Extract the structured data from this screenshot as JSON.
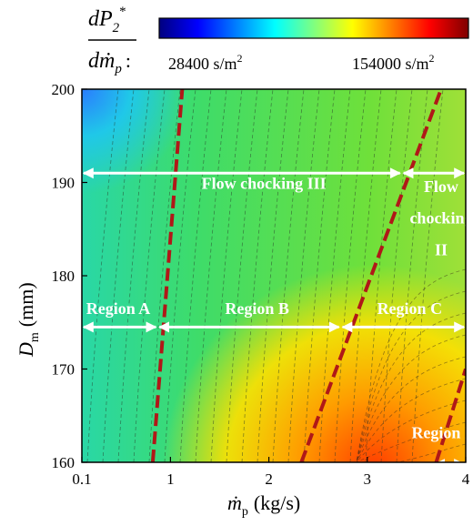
{
  "chart_data": {
    "type": "heatmap",
    "colorbar": {
      "label_numerator_base": "dP",
      "label_numerator_sub": "2",
      "label_numerator_sup": "*",
      "label_denominator_base": "dṁ",
      "label_denominator_sub": "p",
      "label_colon": ":",
      "min_label": "28400 s/m",
      "min_label_sup": "2",
      "max_label": "154000 s/m",
      "max_label_sup": "2",
      "min": 28400,
      "max": 154000,
      "colormap": "jet"
    },
    "xlabel_base": "ṁ",
    "xlabel_sub": "p",
    "xlabel_unit": "(kg/s)",
    "ylabel_base": "D",
    "ylabel_sub": "m",
    "ylabel_unit": "(mm)",
    "xlim": [
      0.1,
      4
    ],
    "ylim": [
      160,
      200
    ],
    "x_ticks": [
      {
        "value": 0.1,
        "label": "0.1"
      },
      {
        "value": 1,
        "label": "1"
      },
      {
        "value": 2,
        "label": "2"
      },
      {
        "value": 3,
        "label": "3"
      },
      {
        "value": 4,
        "label": "4"
      }
    ],
    "y_ticks": [
      {
        "value": 160,
        "label": "160"
      },
      {
        "value": 170,
        "label": "170"
      },
      {
        "value": 180,
        "label": "180"
      },
      {
        "value": 190,
        "label": "190"
      },
      {
        "value": 200,
        "label": "200"
      }
    ],
    "boundary_lines": [
      {
        "color": "#b01818",
        "style": "dashed",
        "points": [
          [
            0.82,
            160
          ],
          [
            1.12,
            200
          ]
        ]
      },
      {
        "color": "#b01818",
        "style": "dashed",
        "points": [
          [
            2.33,
            160
          ],
          [
            3.75,
            200
          ]
        ]
      },
      {
        "color": "#b01818",
        "style": "dashed",
        "points": [
          [
            3.7,
            160
          ],
          [
            4.0,
            170
          ]
        ]
      }
    ],
    "annotations": [
      {
        "text": "Flow chocking III",
        "x": 1.95,
        "y": 189.3
      },
      {
        "text": "Flow",
        "x": 3.75,
        "y": 189.0
      },
      {
        "text": "chocking",
        "x": 3.75,
        "y": 185.6
      },
      {
        "text": "II",
        "x": 3.75,
        "y": 182.2
      },
      {
        "text": "Region A",
        "x": 0.47,
        "y": 175.9
      },
      {
        "text": "Region B",
        "x": 1.88,
        "y": 175.9
      },
      {
        "text": "Region C",
        "x": 3.43,
        "y": 175.9
      },
      {
        "text": "Region D",
        "x": 3.78,
        "y": 162.6
      }
    ],
    "arrows": [
      {
        "from": [
          0.1,
          191
        ],
        "to": [
          3.35,
          191
        ]
      },
      {
        "from": [
          3.35,
          191
        ],
        "to": [
          4.0,
          191
        ]
      },
      {
        "from": [
          0.1,
          174.5
        ],
        "to": [
          0.87,
          174.5
        ]
      },
      {
        "from": [
          0.87,
          174.5
        ],
        "to": [
          2.73,
          174.5
        ]
      },
      {
        "from": [
          2.73,
          174.5
        ],
        "to": [
          4.0,
          174.5
        ]
      },
      {
        "from": [
          3.67,
          159.8
        ],
        "to": [
          4.0,
          159.8
        ]
      }
    ]
  }
}
